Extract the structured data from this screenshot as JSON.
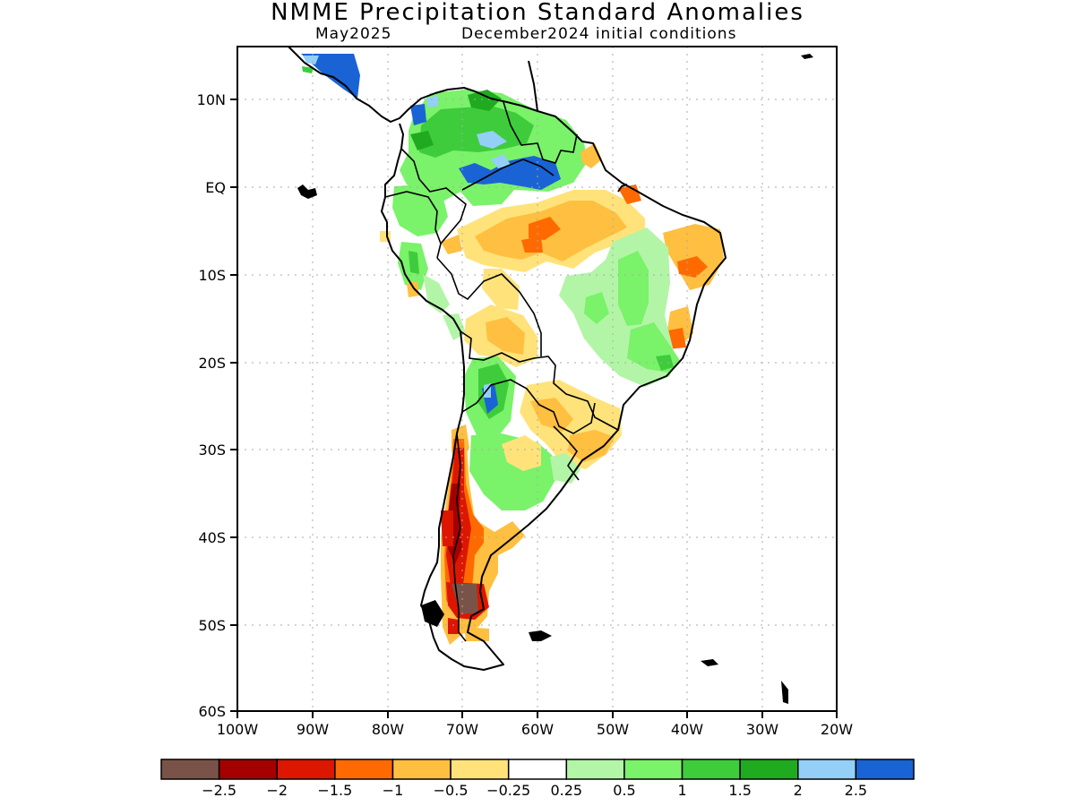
{
  "title": "NMME Precipitation Standard Anomalies",
  "subtitle_left": "May2025",
  "subtitle_right": "December2024 initial conditions",
  "axes": {
    "lat_labels": [
      "10N",
      "EQ",
      "10S",
      "20S",
      "30S",
      "40S",
      "50S",
      "60S"
    ],
    "lon_labels": [
      "100W",
      "90W",
      "80W",
      "70W",
      "60W",
      "50W",
      "40W",
      "30W",
      "20W"
    ]
  },
  "colorbar": {
    "colors": [
      "#7a5348",
      "#a50000",
      "#dd1600",
      "#ff6a00",
      "#ffbf40",
      "#ffe37a",
      "#ffffff",
      "#b2f5a6",
      "#7af26a",
      "#3ecc3c",
      "#20aa20",
      "#94cff7",
      "#1a63d4"
    ],
    "labels": [
      "−2.5",
      "−2",
      "−1.5",
      "−1",
      "−0.5",
      "−0.25",
      "0.25",
      "0.5",
      "1",
      "1.5",
      "2",
      "2.5"
    ]
  }
}
